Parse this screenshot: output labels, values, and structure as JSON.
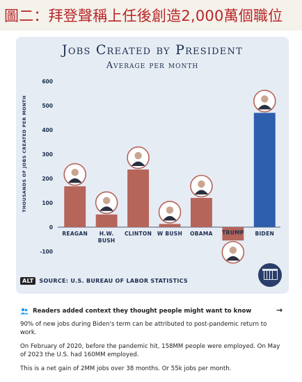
{
  "caption": "圖二：拜登聲稱上任後創造2,000萬個職位",
  "chart_data": {
    "type": "bar",
    "title": "Jobs Created by President",
    "subtitle": "Average per month",
    "ylabel": "Thousands of jobs created per month",
    "xlabel": "",
    "ylim": [
      -100,
      600
    ],
    "yticks": [
      -100,
      0,
      100,
      200,
      300,
      400,
      500,
      600
    ],
    "categories": [
      "REAGAN",
      "H.W. BUSH",
      "CLINTON",
      "W BUSH",
      "OBAMA",
      "TRUMP",
      "BIDEN"
    ],
    "category_lines": [
      [
        "REAGAN"
      ],
      [
        "H.W.",
        "BUSH"
      ],
      [
        "CLINTON"
      ],
      [
        "W BUSH"
      ],
      [
        "OBAMA"
      ],
      [
        "TRUMP"
      ],
      [
        "BIDEN"
      ]
    ],
    "values": [
      168,
      52,
      237,
      13,
      120,
      -55,
      470
    ],
    "colors": [
      "#b5655a",
      "#b5655a",
      "#b5655a",
      "#b5655a",
      "#b5655a",
      "#b5655a",
      "#2e5fad"
    ],
    "grid": false,
    "source": "SOURCE: U.S. BUREAU OF LABOR STATISTICS"
  },
  "alt_badge": "ALT",
  "context_note": {
    "heading": "Readers added context they thought people might want to know",
    "arrow": "→",
    "paragraphs": [
      "90% of new jobs during Biden's term can be attributed to post-pandemic return to work.",
      "On February of 2020, before the pandemic hit, 158MM people were employed. On May of 2023 the U.S. had 160MM employed.",
      "This is a net gain of 2MM jobs over 38 months. Or 55k jobs per month."
    ]
  },
  "colors": {
    "caption": "#b8262a",
    "card": "#e6ecf4",
    "title": "#1c2d4f",
    "note_icon": "#1d9bf0"
  }
}
